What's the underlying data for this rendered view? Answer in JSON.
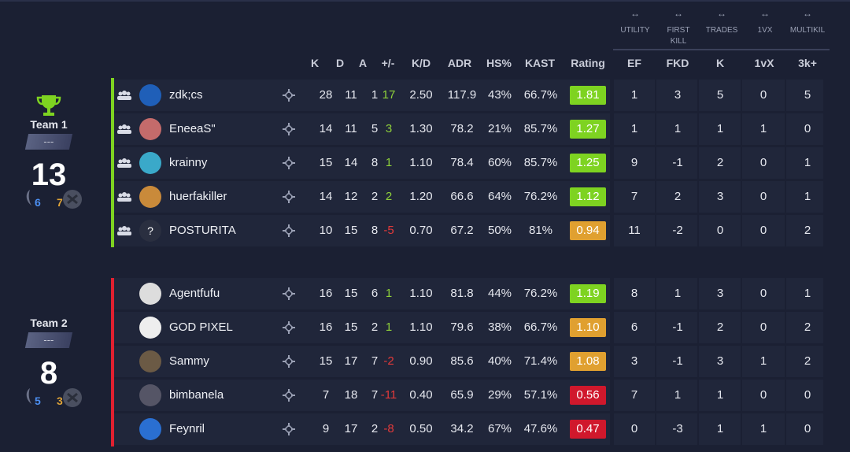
{
  "columns": {
    "headers": [
      "K",
      "D",
      "A",
      "+/-",
      "K/D",
      "ADR",
      "HS%",
      "KAST",
      "Rating",
      "EF",
      "FKD",
      "K",
      "1vX",
      "3k+"
    ],
    "groups": [
      {
        "label": "UTILITY",
        "label2": ""
      },
      {
        "label": "FIRST",
        "label2": "KILL"
      },
      {
        "label": "TRADES",
        "label2": ""
      },
      {
        "label": "1VX",
        "label2": ""
      },
      {
        "label": "MULTIKIL",
        "label2": ""
      }
    ]
  },
  "teams": [
    {
      "name": "Team 1",
      "rank": "---",
      "score": "13",
      "ct_rounds": "6",
      "t_rounds": "7",
      "winner": true,
      "color": "#7ed321",
      "players": [
        {
          "name": "zdk;cs",
          "k": "28",
          "d": "11",
          "a": "1",
          "pm": "17",
          "kd": "2.50",
          "adr": "117.9",
          "hs": "43%",
          "kast": "66.7%",
          "rating": "1.81",
          "ef": "1",
          "fkd": "3",
          "tk": "5",
          "onevx": "0",
          "mk": "5",
          "rating_color": "#7ed321",
          "party": true
        },
        {
          "name": "EneeaS\"",
          "k": "14",
          "d": "11",
          "a": "5",
          "pm": "3",
          "kd": "1.30",
          "adr": "78.2",
          "hs": "21%",
          "kast": "85.7%",
          "rating": "1.27",
          "ef": "1",
          "fkd": "1",
          "tk": "1",
          "onevx": "1",
          "mk": "0",
          "rating_color": "#7ed321",
          "party": true
        },
        {
          "name": "krainny",
          "k": "15",
          "d": "14",
          "a": "8",
          "pm": "1",
          "kd": "1.10",
          "adr": "78.4",
          "hs": "60%",
          "kast": "85.7%",
          "rating": "1.25",
          "ef": "9",
          "fkd": "-1",
          "tk": "2",
          "onevx": "0",
          "mk": "1",
          "rating_color": "#7ed321",
          "party": true
        },
        {
          "name": "huerfakiller",
          "k": "14",
          "d": "12",
          "a": "2",
          "pm": "2",
          "kd": "1.20",
          "adr": "66.6",
          "hs": "64%",
          "kast": "76.2%",
          "rating": "1.12",
          "ef": "7",
          "fkd": "2",
          "tk": "3",
          "onevx": "0",
          "mk": "1",
          "rating_color": "#7ed321",
          "party": true
        },
        {
          "name": "POSTURITA",
          "k": "10",
          "d": "15",
          "a": "8",
          "pm": "-5",
          "kd": "0.70",
          "adr": "67.2",
          "hs": "50%",
          "kast": "81%",
          "rating": "0.94",
          "ef": "11",
          "fkd": "-2",
          "tk": "0",
          "onevx": "0",
          "mk": "2",
          "rating_color": "#e0a030",
          "party": true
        }
      ]
    },
    {
      "name": "Team 2",
      "rank": "---",
      "score": "8",
      "ct_rounds": "5",
      "t_rounds": "3",
      "winner": false,
      "color": "#e02030",
      "players": [
        {
          "name": "Agentfufu",
          "k": "16",
          "d": "15",
          "a": "6",
          "pm": "1",
          "kd": "1.10",
          "adr": "81.8",
          "hs": "44%",
          "kast": "76.2%",
          "rating": "1.19",
          "ef": "8",
          "fkd": "1",
          "tk": "3",
          "onevx": "0",
          "mk": "1",
          "rating_color": "#7ed321",
          "party": false
        },
        {
          "name": "GOD PIXEL",
          "k": "16",
          "d": "15",
          "a": "2",
          "pm": "1",
          "kd": "1.10",
          "adr": "79.6",
          "hs": "38%",
          "kast": "66.7%",
          "rating": "1.10",
          "ef": "6",
          "fkd": "-1",
          "tk": "2",
          "onevx": "0",
          "mk": "2",
          "rating_color": "#e0a030",
          "party": false
        },
        {
          "name": "Sammy",
          "k": "15",
          "d": "17",
          "a": "7",
          "pm": "-2",
          "kd": "0.90",
          "adr": "85.6",
          "hs": "40%",
          "kast": "71.4%",
          "rating": "1.08",
          "ef": "3",
          "fkd": "-1",
          "tk": "3",
          "onevx": "1",
          "mk": "2",
          "rating_color": "#e0a030",
          "party": false
        },
        {
          "name": "bimbanela",
          "k": "7",
          "d": "18",
          "a": "7",
          "pm": "-11",
          "kd": "0.40",
          "adr": "65.9",
          "hs": "29%",
          "kast": "57.1%",
          "rating": "0.56",
          "ef": "7",
          "fkd": "1",
          "tk": "1",
          "onevx": "0",
          "mk": "0",
          "rating_color": "#d0182c",
          "party": false
        },
        {
          "name": "Feynril",
          "k": "9",
          "d": "17",
          "a": "2",
          "pm": "-8",
          "kd": "0.50",
          "adr": "34.2",
          "hs": "67%",
          "kast": "47.6%",
          "rating": "0.47",
          "ef": "0",
          "fkd": "-3",
          "tk": "1",
          "onevx": "1",
          "mk": "0",
          "rating_color": "#d0182c",
          "party": false
        }
      ]
    }
  ]
}
